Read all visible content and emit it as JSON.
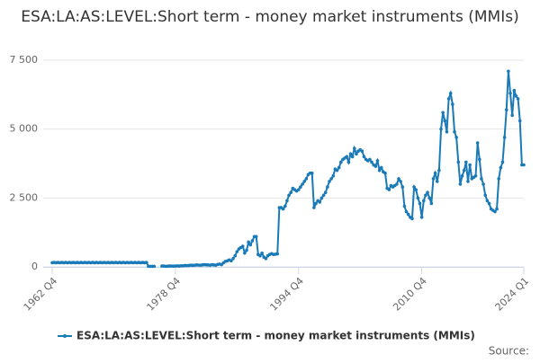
{
  "chart_data": {
    "type": "line",
    "title": "ESA:LA:AS:LEVEL:Short term - money market instruments (MMIs)",
    "credit": "Source:",
    "categories": [
      "1962 Q4",
      null,
      null,
      null,
      null,
      null,
      null,
      null,
      null,
      null,
      null,
      null,
      null,
      null,
      null,
      null,
      null,
      null,
      null,
      null,
      null,
      null,
      null,
      null,
      null,
      null,
      null,
      null,
      null,
      null,
      null,
      null,
      null,
      null,
      null,
      null,
      null,
      null,
      null,
      null,
      null,
      null,
      null,
      null,
      null,
      null,
      null,
      null,
      null,
      null,
      null,
      null,
      null,
      null,
      null,
      null,
      null,
      null,
      null,
      null,
      null,
      null,
      null,
      null,
      "1978 Q4",
      null,
      null,
      null,
      null,
      null,
      null,
      null,
      null,
      null,
      null,
      null,
      null,
      null,
      null,
      null,
      null,
      null,
      null,
      null,
      null,
      null,
      null,
      null,
      null,
      null,
      null,
      null,
      null,
      null,
      null,
      null,
      null,
      null,
      null,
      null,
      null,
      null,
      null,
      null,
      null,
      null,
      null,
      null,
      null,
      null,
      null,
      null,
      null,
      null,
      null,
      null,
      null,
      null,
      null,
      null,
      null,
      null,
      null,
      null,
      null,
      null,
      null,
      null,
      "1994 Q4",
      null,
      null,
      null,
      null,
      null,
      null,
      null,
      null,
      null,
      null,
      null,
      null,
      null,
      null,
      null,
      null,
      null,
      null,
      null,
      null,
      null,
      null,
      null,
      null,
      null,
      null,
      null,
      null,
      null,
      null,
      null,
      null,
      null,
      null,
      null,
      null,
      null,
      null,
      null,
      null,
      null,
      null,
      null,
      null,
      null,
      null,
      null,
      null,
      null,
      null,
      null,
      null,
      null,
      null,
      null,
      null,
      null,
      null,
      null,
      null,
      null,
      null,
      null,
      "2010 Q4",
      null,
      null,
      null,
      null,
      null,
      null,
      null,
      null,
      null,
      null,
      null,
      null,
      null,
      null,
      null,
      null,
      null,
      null,
      null,
      null,
      null,
      null,
      null,
      null,
      null,
      null,
      null,
      null,
      null,
      null,
      null,
      null,
      null,
      null,
      null,
      null,
      null,
      null,
      null,
      null,
      null,
      null,
      null,
      null,
      null,
      null,
      null,
      null,
      null,
      null,
      null,
      null,
      "2024 Q1"
    ],
    "series": [
      {
        "name": "ESA:LA:AS:LEVEL:Short term - money market instruments (MMIs)",
        "color": "#1a7ab8",
        "values": [
          150,
          160,
          150,
          160,
          150,
          160,
          150,
          160,
          150,
          160,
          150,
          160,
          150,
          160,
          150,
          160,
          150,
          160,
          150,
          160,
          150,
          160,
          150,
          160,
          150,
          160,
          150,
          160,
          150,
          160,
          150,
          160,
          150,
          160,
          150,
          160,
          150,
          160,
          150,
          160,
          150,
          160,
          150,
          160,
          150,
          160,
          150,
          160,
          150,
          160,
          20,
          20,
          20,
          20,
          null,
          null,
          null,
          30,
          30,
          20,
          25,
          30,
          30,
          25,
          30,
          35,
          30,
          40,
          40,
          50,
          45,
          50,
          60,
          55,
          60,
          70,
          65,
          60,
          70,
          80,
          75,
          70,
          60,
          80,
          70,
          60,
          90,
          100,
          80,
          150,
          200,
          220,
          250,
          220,
          300,
          400,
          550,
          650,
          700,
          750,
          500,
          600,
          900,
          800,
          950,
          1100,
          1100,
          450,
          400,
          500,
          350,
          300,
          400,
          450,
          480,
          450,
          460,
          470,
          2150,
          2150,
          2100,
          2200,
          2400,
          2600,
          2700,
          2850,
          2800,
          2750,
          2800,
          2900,
          3000,
          3100,
          3200,
          3350,
          3400,
          3400,
          2150,
          2300,
          2400,
          2350,
          2500,
          2600,
          2700,
          2900,
          3100,
          3200,
          3300,
          3550,
          3500,
          3600,
          3800,
          3900,
          3950,
          4000,
          3800,
          4100,
          4000,
          4300,
          4100,
          4200,
          4250,
          4200,
          4000,
          3900,
          3850,
          3900,
          3800,
          3700,
          3650,
          3850,
          3500,
          3600,
          3450,
          3400,
          2850,
          2800,
          2950,
          2900,
          2950,
          3000,
          3200,
          3100,
          2900,
          2200,
          2000,
          1900,
          1800,
          1750,
          2900,
          2800,
          2500,
          2300,
          1800,
          2400,
          2600,
          2700,
          2500,
          2300,
          3200,
          3400,
          3100,
          3500,
          5000,
          5600,
          5300,
          4900,
          6100,
          6300,
          5900,
          4900,
          4700,
          3800,
          3000,
          3300,
          3500,
          3800,
          3100,
          3700,
          3200,
          3250,
          3300,
          4500,
          3900,
          3200,
          3000,
          2600,
          2400,
          2300,
          2100,
          2050,
          2000,
          2100,
          3200,
          3600,
          3800,
          4700,
          5700,
          7100,
          6300,
          5500,
          6400,
          6200,
          6100,
          5300,
          3700,
          3700
        ]
      }
    ],
    "ylim": [
      0,
      7500
    ],
    "yticks": [
      0,
      {
        "value": 2500,
        "label": "2 500"
      },
      {
        "value": 5000,
        "label": "5 000"
      },
      {
        "value": 7500,
        "label": "7 500"
      }
    ],
    "grid": true
  }
}
